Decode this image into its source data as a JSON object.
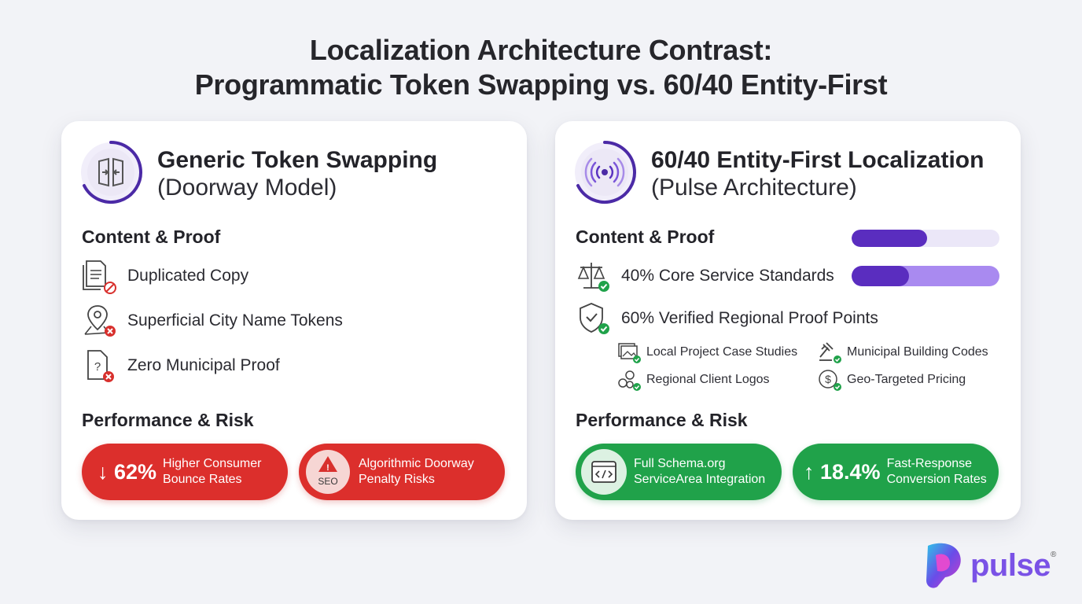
{
  "title": {
    "line1": "Localization Architecture Contrast:",
    "line2": "Programmatic Token Swapping vs. 60/40 Entity-First"
  },
  "left_card": {
    "title_line1": "Generic Token Swapping",
    "title_line2": "(Doorway Model)",
    "header_icon": "book-doorway-icon",
    "content_heading": "Content & Proof",
    "items": [
      {
        "label": "Duplicated Copy",
        "icon": "document-blocked-icon"
      },
      {
        "label": "Superficial City Name Tokens",
        "icon": "location-pin-error-icon"
      },
      {
        "label": "Zero Municipal Proof",
        "icon": "question-document-error-icon"
      }
    ],
    "performance_heading": "Performance & Risk",
    "pill1": {
      "value": "↓ 62%",
      "line1": "Higher Consumer",
      "line2": "Bounce Rates"
    },
    "pill2": {
      "badge": "SEO",
      "line1": "Algorithmic Doorway",
      "line2": "Penalty Risks"
    },
    "colors": {
      "risk": "#dc2f2c"
    }
  },
  "right_card": {
    "title_line1": "60/40 Entity-First Localization",
    "title_line2": "(Pulse Architecture)",
    "header_icon": "signal-pulse-icon",
    "content_heading": "Content & Proof",
    "bar_top_fill": 0.51,
    "bar_core_fill": 0.39,
    "items": [
      {
        "label": "40% Core Service Standards",
        "icon": "scales-check-icon"
      },
      {
        "label": "60% Verified Regional Proof Points",
        "icon": "shield-check-icon"
      }
    ],
    "sub_items": [
      {
        "label": "Local Project Case Studies",
        "icon": "images-check-icon"
      },
      {
        "label": "Municipal Building Codes",
        "icon": "gavel-check-icon"
      },
      {
        "label": "Regional Client Logos",
        "icon": "logos-check-icon"
      },
      {
        "label": "Geo-Targeted Pricing",
        "icon": "dollar-check-icon"
      }
    ],
    "performance_heading": "Performance & Risk",
    "pill1": {
      "line1": "Full Schema.org",
      "line2": "ServiceArea Integration",
      "icon": "code-window-icon"
    },
    "pill2": {
      "value": "↑ 18.4%",
      "line1": "Fast-Response",
      "line2": "Conversion Rates"
    },
    "colors": {
      "success": "#20a24a",
      "accent": "#5a2dbf"
    }
  },
  "brand": {
    "name": "pulse",
    "reg": "®"
  }
}
